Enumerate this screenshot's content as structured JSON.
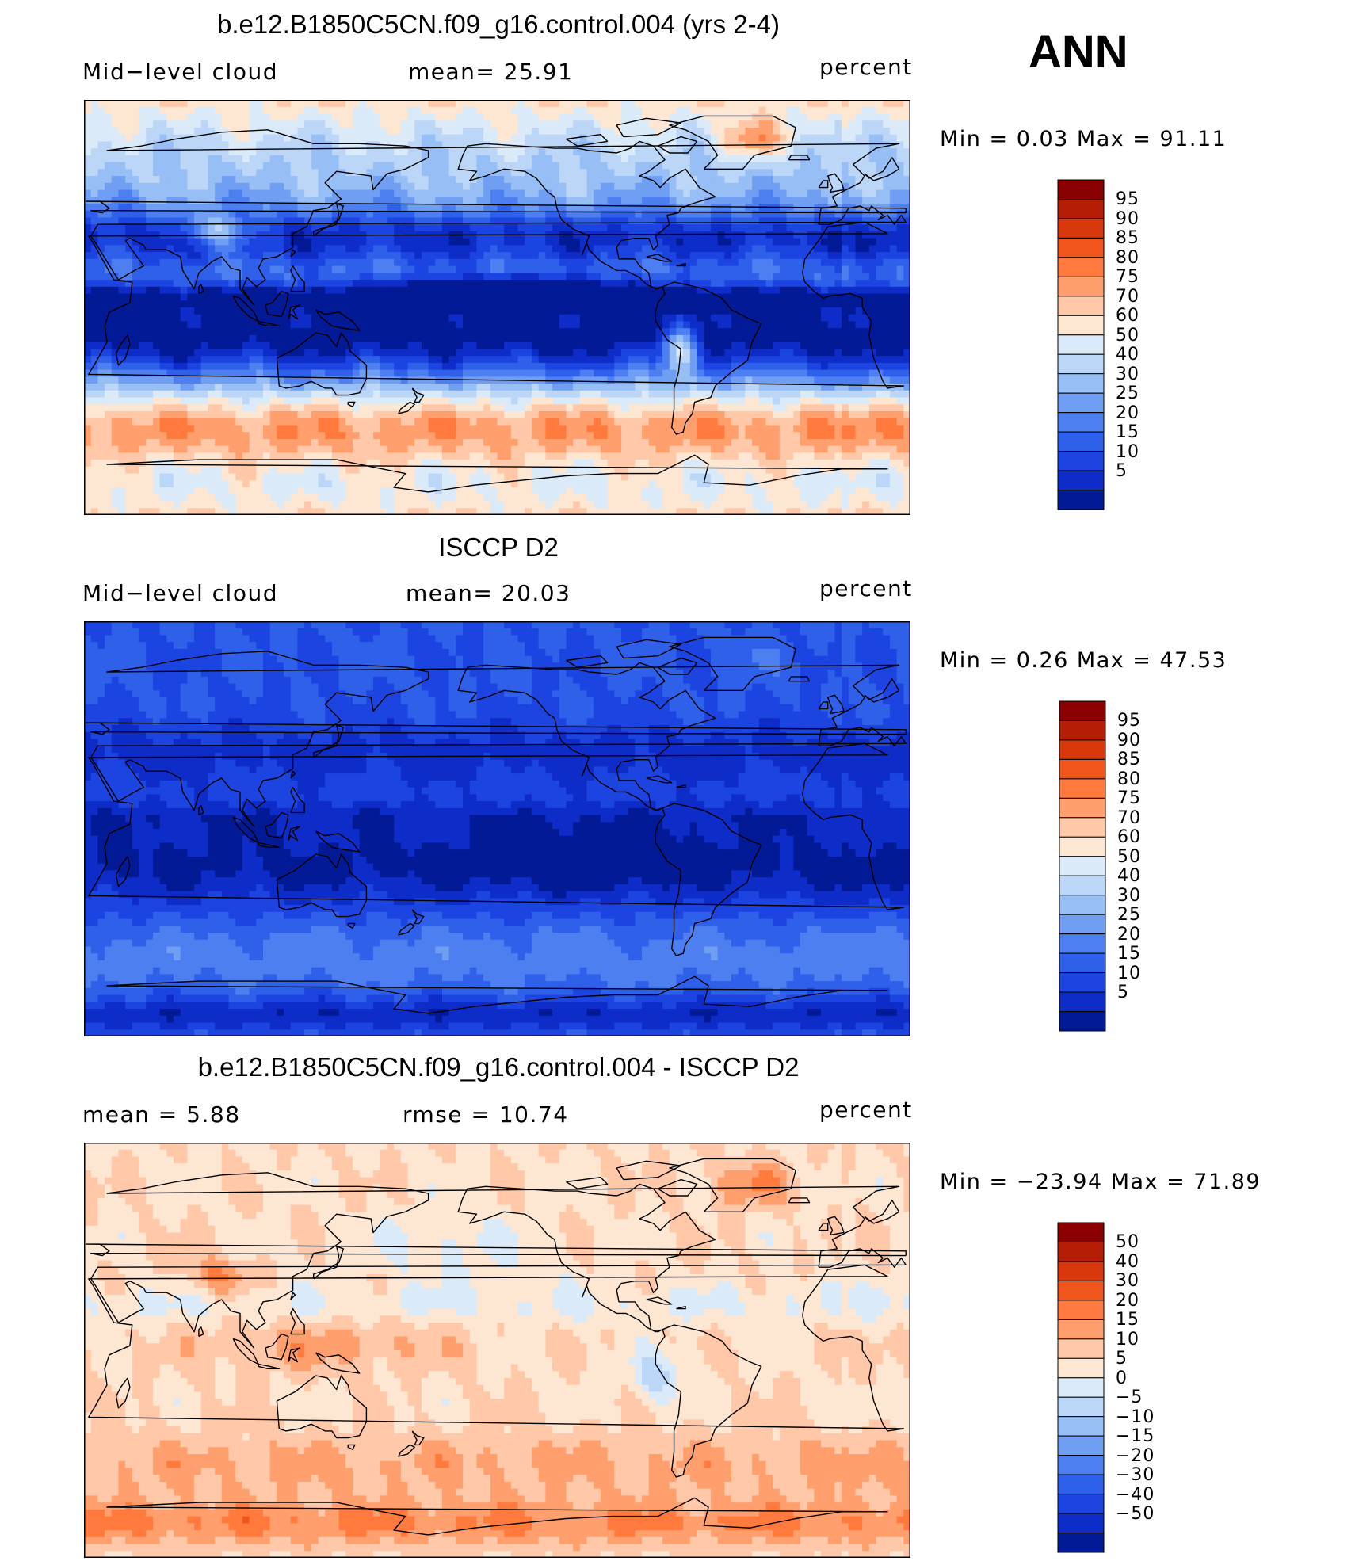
{
  "season": "ANN",
  "panels": [
    {
      "id": "model",
      "title": "b.e12.B1850C5CN.f09_g16.control.004 (yrs 2-4)",
      "left_label": "Mid−level cloud",
      "stat": "mean=   25.91",
      "units": "percent",
      "minmax": "Min =     0.03  Max =    91.11",
      "colorbar": {
        "labels": [
          "95",
          "90",
          "85",
          "80",
          "75",
          "70",
          "60",
          "50",
          "40",
          "30",
          "25",
          "20",
          "15",
          "10",
          "5"
        ],
        "colors": [
          "#8b0000",
          "#b41e06",
          "#d8380c",
          "#f0551c",
          "#ff7a3c",
          "#ff9f6e",
          "#ffc8a8",
          "#fde6d2",
          "#dbeaf8",
          "#bcd6f8",
          "#97bff6",
          "#709ef2",
          "#4e7ff0",
          "#2f60ea",
          "#1c44e0",
          "#0e2cc8",
          "#031a96"
        ]
      },
      "palette": [
        "#031a96",
        "#0e2cc8",
        "#1c44e0",
        "#2f60ea",
        "#4e7ff0",
        "#709ef2",
        "#97bff6",
        "#bcd6f8",
        "#dbeaf8",
        "#fde6d2",
        "#ffc8a8",
        "#ff9f6e",
        "#ff7a3c",
        "#f0551c",
        "#d8380c"
      ]
    },
    {
      "id": "obs",
      "title": "ISCCP D2",
      "left_label": "Mid−level cloud",
      "stat": "mean=   20.03",
      "units": "percent",
      "minmax": "Min =     0.26  Max =    47.53",
      "colorbar": {
        "labels": [
          "95",
          "90",
          "85",
          "80",
          "75",
          "70",
          "60",
          "50",
          "40",
          "30",
          "25",
          "20",
          "15",
          "10",
          "5"
        ],
        "colors": [
          "#8b0000",
          "#b41e06",
          "#d8380c",
          "#f0551c",
          "#ff7a3c",
          "#ff9f6e",
          "#ffc8a8",
          "#fde6d2",
          "#dbeaf8",
          "#bcd6f8",
          "#97bff6",
          "#709ef2",
          "#4e7ff0",
          "#2f60ea",
          "#1c44e0",
          "#0e2cc8",
          "#031a96"
        ]
      },
      "palette": [
        "#031a96",
        "#0e2cc8",
        "#1c44e0",
        "#2f60ea",
        "#4e7ff0",
        "#709ef2",
        "#97bff6",
        "#bcd6f8",
        "#dbeaf8"
      ]
    },
    {
      "id": "diff",
      "title": "b.e12.B1850C5CN.f09_g16.control.004 - ISCCP D2",
      "left_label": "mean =     5.88",
      "stat": "rmse =    10.74",
      "units": "percent",
      "minmax": "Min = −23.94  Max =    71.89",
      "colorbar": {
        "labels": [
          "50",
          "40",
          "30",
          "20",
          "15",
          "10",
          "5",
          "0",
          "−5",
          "−10",
          "−15",
          "−20",
          "−30",
          "−40",
          "−50"
        ],
        "colors": [
          "#8b0000",
          "#b41e06",
          "#d8380c",
          "#f0551c",
          "#ff7a3c",
          "#ff9f6e",
          "#ffc8a8",
          "#fde6d2",
          "#dbeaf8",
          "#bcd6f8",
          "#97bff6",
          "#709ef2",
          "#4e7ff0",
          "#2f60ea",
          "#1c44e0",
          "#0e2cc8",
          "#031a96"
        ]
      },
      "palette": [
        "#97bff6",
        "#bcd6f8",
        "#dbeaf8",
        "#fde6d2",
        "#ffc8a8",
        "#ff9f6e",
        "#ff7a3c",
        "#f0551c",
        "#d8380c",
        "#b41e06",
        "#8b0000"
      ]
    }
  ]
}
